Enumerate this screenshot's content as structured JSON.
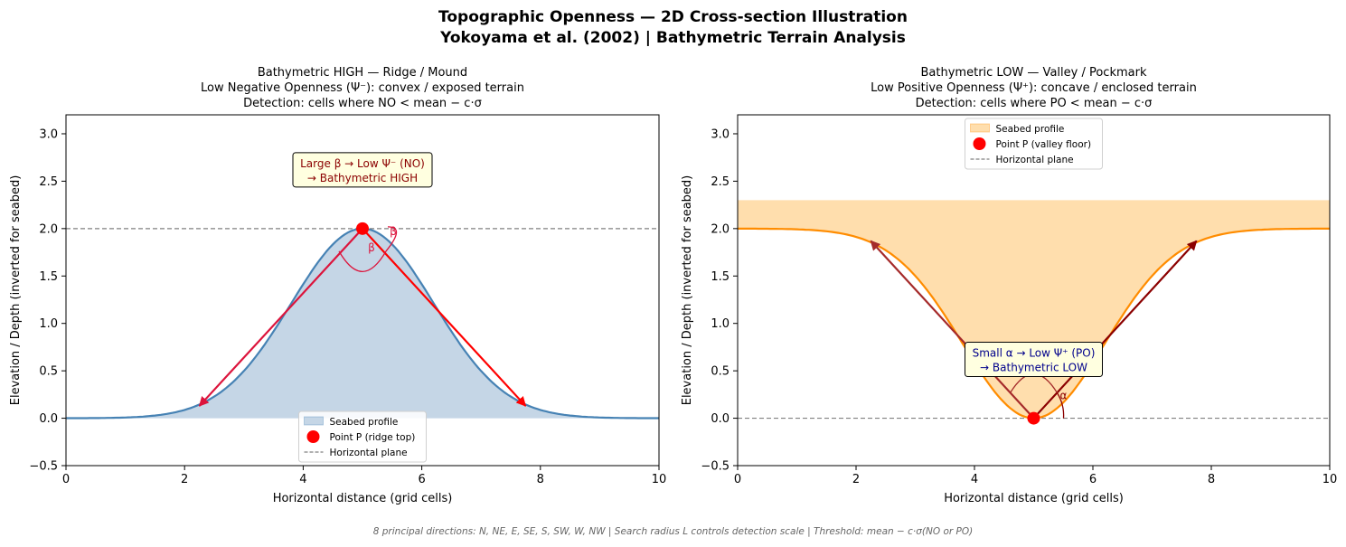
{
  "figure": {
    "title_line1": "Topographic Openness — 2D Cross-section Illustration",
    "title_line2": "Yokoyama et al. (2002) | Bathymetric Terrain Analysis",
    "footer": "8 principal directions: N, NE, E, SE, S, SW, W, NW  |  Search radius L controls detection scale  |  Threshold: mean − c·σ(NO or PO)"
  },
  "chart_data": [
    {
      "type": "area",
      "title_lines": [
        "Bathymetric HIGH — Ridge / Mound",
        "Low Negative Openness (Ψ⁻): convex / exposed terrain",
        "Detection: cells where NO < mean − c·σ"
      ],
      "xlabel": "Horizontal distance (grid cells)",
      "ylabel": "Elevation / Depth (inverted for seabed)",
      "xlim": [
        0,
        10
      ],
      "ylim": [
        -0.5,
        3.2
      ],
      "xticks": [
        "0",
        "2",
        "4",
        "6",
        "8",
        "10"
      ],
      "yticks": [
        "−0.5",
        "0.0",
        "0.5",
        "1.0",
        "1.5",
        "2.0",
        "2.5",
        "3.0"
      ],
      "profile": {
        "shape": "gaussian-peak",
        "center": 5,
        "amplitude": 2.0,
        "sigma": 1.2,
        "baseline": 0.0,
        "color": "#4682b4",
        "fill": "#c5d6e6"
      },
      "fill_between": [
        0,
        "profile"
      ],
      "point": {
        "x": 5,
        "y": 2.0,
        "color": "#ff0000"
      },
      "horizontal_line": 2.0,
      "arrows": [
        {
          "from": [
            5,
            2.0
          ],
          "to": [
            2.25,
            0.13
          ],
          "color": "#dc143c"
        },
        {
          "from": [
            5,
            2.0
          ],
          "to": [
            7.75,
            0.13
          ],
          "color": "#ff0000"
        }
      ],
      "angle_labels": [
        "β",
        "β"
      ],
      "annotation": {
        "text_line1": "Large β → Low Ψ⁻ (NO)",
        "text_line2": "→ Bathymetric HIGH",
        "color": "#8b0000",
        "x": 5,
        "y": 2.62
      },
      "legend": {
        "placement": "lower center",
        "entries": [
          "Seabed profile",
          "Point P (ridge top)",
          "Horizontal plane"
        ]
      }
    },
    {
      "type": "area",
      "title_lines": [
        "Bathymetric LOW — Valley / Pockmark",
        "Low Positive Openness (Ψ⁺): concave / enclosed terrain",
        "Detection: cells where PO < mean − c·σ"
      ],
      "xlabel": "Horizontal distance (grid cells)",
      "ylabel": "Elevation / Depth (inverted for seabed)",
      "xlim": [
        0,
        10
      ],
      "ylim": [
        -0.5,
        3.2
      ],
      "xticks": [
        "0",
        "2",
        "4",
        "6",
        "8",
        "10"
      ],
      "yticks": [
        "−0.5",
        "0.0",
        "0.5",
        "1.0",
        "1.5",
        "2.0",
        "2.5",
        "3.0"
      ],
      "profile": {
        "shape": "gaussian-valley",
        "center": 5,
        "amplitude": 2.0,
        "sigma": 1.2,
        "baseline": 2.0,
        "color": "#ff8c00",
        "fill": "#ffdead"
      },
      "fill_between": [
        "profile",
        2.3
      ],
      "point": {
        "x": 5,
        "y": 0.0,
        "color": "#ff0000"
      },
      "horizontal_line": 0.0,
      "arrows": [
        {
          "from": [
            5,
            0.0
          ],
          "to": [
            2.25,
            1.87
          ],
          "color": "#a52a2a"
        },
        {
          "from": [
            5,
            0.0
          ],
          "to": [
            7.75,
            1.87
          ],
          "color": "#8b0000"
        }
      ],
      "angle_labels": [
        "α"
      ],
      "annotation": {
        "text_line1": "Small α → Low Ψ⁺ (PO)",
        "text_line2": "→ Bathymetric LOW",
        "color": "#00008b",
        "x": 5,
        "y": 0.62
      },
      "legend": {
        "placement": "upper center",
        "entries": [
          "Seabed profile",
          "Point P (valley floor)",
          "Horizontal plane"
        ]
      }
    }
  ]
}
